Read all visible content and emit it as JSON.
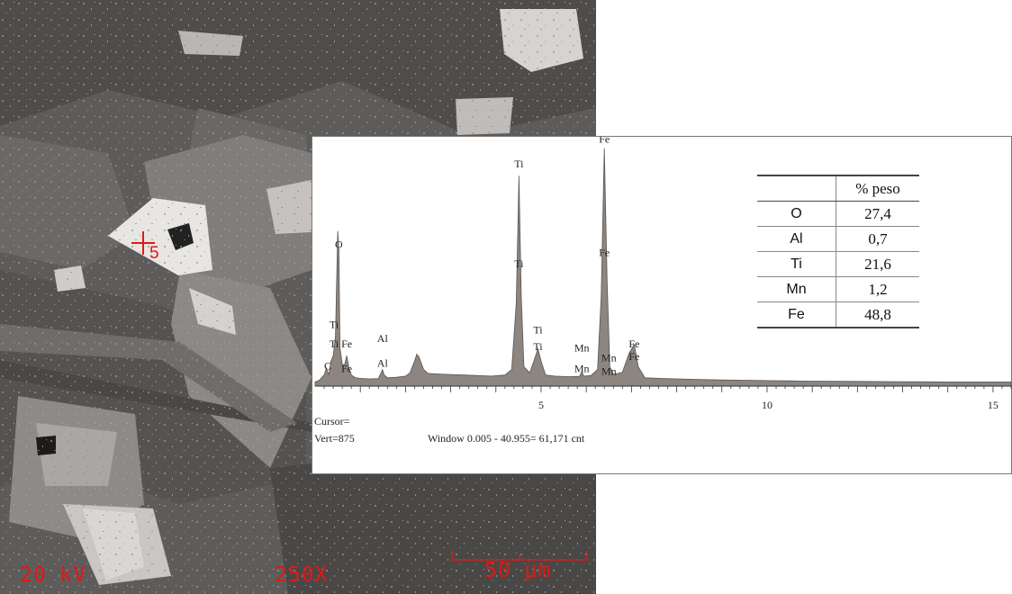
{
  "sem_image": {
    "voltage": "20 kV",
    "magnification": "250X",
    "scale_bar": "50 µm",
    "spot_marker": "5",
    "colors": {
      "overlay": "#e01818",
      "background": "#5c5a58"
    }
  },
  "chart_data": {
    "type": "line",
    "title": "",
    "xlabel": "",
    "ylabel": "",
    "xlim": [
      0,
      15.4
    ],
    "ylim": [
      0,
      875
    ],
    "xticks": [
      5,
      10,
      15
    ],
    "series": [
      {
        "points": [
          [
            0.0,
            15
          ],
          [
            0.1,
            22
          ],
          [
            0.2,
            40
          ],
          [
            0.25,
            65
          ],
          [
            0.3,
            40
          ],
          [
            0.35,
            90
          ],
          [
            0.4,
            110
          ],
          [
            0.45,
            180
          ],
          [
            0.5,
            560
          ],
          [
            0.525,
            490
          ],
          [
            0.55,
            140
          ],
          [
            0.6,
            80
          ],
          [
            0.65,
            75
          ],
          [
            0.7,
            110
          ],
          [
            0.75,
            65
          ],
          [
            0.8,
            40
          ],
          [
            0.9,
            30
          ],
          [
            1.0,
            28
          ],
          [
            1.2,
            26
          ],
          [
            1.4,
            27
          ],
          [
            1.45,
            45
          ],
          [
            1.49,
            60
          ],
          [
            1.53,
            40
          ],
          [
            1.6,
            30
          ],
          [
            1.8,
            32
          ],
          [
            2.0,
            36
          ],
          [
            2.1,
            48
          ],
          [
            2.2,
            90
          ],
          [
            2.25,
            115
          ],
          [
            2.3,
            105
          ],
          [
            2.4,
            60
          ],
          [
            2.5,
            46
          ],
          [
            2.7,
            44
          ],
          [
            3.0,
            42
          ],
          [
            3.3,
            40
          ],
          [
            3.6,
            38
          ],
          [
            3.9,
            36
          ],
          [
            4.2,
            40
          ],
          [
            4.35,
            60
          ],
          [
            4.45,
            300
          ],
          [
            4.51,
            760
          ],
          [
            4.56,
            330
          ],
          [
            4.62,
            70
          ],
          [
            4.75,
            48
          ],
          [
            4.85,
            95
          ],
          [
            4.93,
            135
          ],
          [
            5.0,
            90
          ],
          [
            5.1,
            40
          ],
          [
            5.3,
            36
          ],
          [
            5.6,
            34
          ],
          [
            5.85,
            35
          ],
          [
            5.9,
            50
          ],
          [
            5.95,
            36
          ],
          [
            6.1,
            38
          ],
          [
            6.25,
            60
          ],
          [
            6.33,
            320
          ],
          [
            6.4,
            860
          ],
          [
            6.46,
            380
          ],
          [
            6.52,
            70
          ],
          [
            6.6,
            42
          ],
          [
            6.8,
            50
          ],
          [
            6.95,
            120
          ],
          [
            7.06,
            150
          ],
          [
            7.15,
            70
          ],
          [
            7.3,
            30
          ],
          [
            7.6,
            28
          ],
          [
            8.0,
            26
          ],
          [
            8.5,
            24
          ],
          [
            9.0,
            22
          ],
          [
            9.5,
            21
          ],
          [
            10.0,
            20
          ],
          [
            10.5,
            19
          ],
          [
            11.0,
            18
          ],
          [
            12.0,
            17
          ],
          [
            13.0,
            16
          ],
          [
            14.0,
            15
          ],
          [
            15.0,
            15
          ],
          [
            15.4,
            15
          ]
        ]
      }
    ],
    "peak_labels": [
      {
        "text": "O",
        "x": 0.525,
        "y": 500
      },
      {
        "text": "C",
        "x": 0.28,
        "y": 60
      },
      {
        "text": "Ti",
        "x": 0.42,
        "y": 210
      },
      {
        "text": "Ti",
        "x": 0.42,
        "y": 140
      },
      {
        "text": "Fe",
        "x": 0.7,
        "y": 140
      },
      {
        "text": "Fe",
        "x": 0.7,
        "y": 50
      },
      {
        "text": "Al",
        "x": 1.49,
        "y": 160
      },
      {
        "text": "Al",
        "x": 1.49,
        "y": 70
      },
      {
        "text": "Ti",
        "x": 4.51,
        "y": 790
      },
      {
        "text": "Ti",
        "x": 4.51,
        "y": 430
      },
      {
        "text": "Ti",
        "x": 4.93,
        "y": 190
      },
      {
        "text": "Ti",
        "x": 4.93,
        "y": 130
      },
      {
        "text": "Mn",
        "x": 5.9,
        "y": 125
      },
      {
        "text": "Mn",
        "x": 5.9,
        "y": 50
      },
      {
        "text": "Fe",
        "x": 6.4,
        "y": 880
      },
      {
        "text": "Fe",
        "x": 6.4,
        "y": 470
      },
      {
        "text": "Mn",
        "x": 6.5,
        "y": 90
      },
      {
        "text": "Mn",
        "x": 6.5,
        "y": 40
      },
      {
        "text": "Fe",
        "x": 7.06,
        "y": 140
      },
      {
        "text": "Fe",
        "x": 7.06,
        "y": 95
      }
    ],
    "colors": {
      "fill": "#8c8580",
      "stroke": "#595451",
      "axis": "#333333"
    }
  },
  "readouts": {
    "cursor": "Cursor=",
    "vert": "Vert=875",
    "window": "Window 0.005 - 40.955=  61,171 cnt"
  },
  "composition": {
    "header": "% peso",
    "rows": [
      {
        "element": "O",
        "value": "27,4"
      },
      {
        "element": "Al",
        "value": "0,7"
      },
      {
        "element": "Ti",
        "value": "21,6"
      },
      {
        "element": "Mn",
        "value": "1,2"
      },
      {
        "element": "Fe",
        "value": "48,8"
      }
    ]
  }
}
